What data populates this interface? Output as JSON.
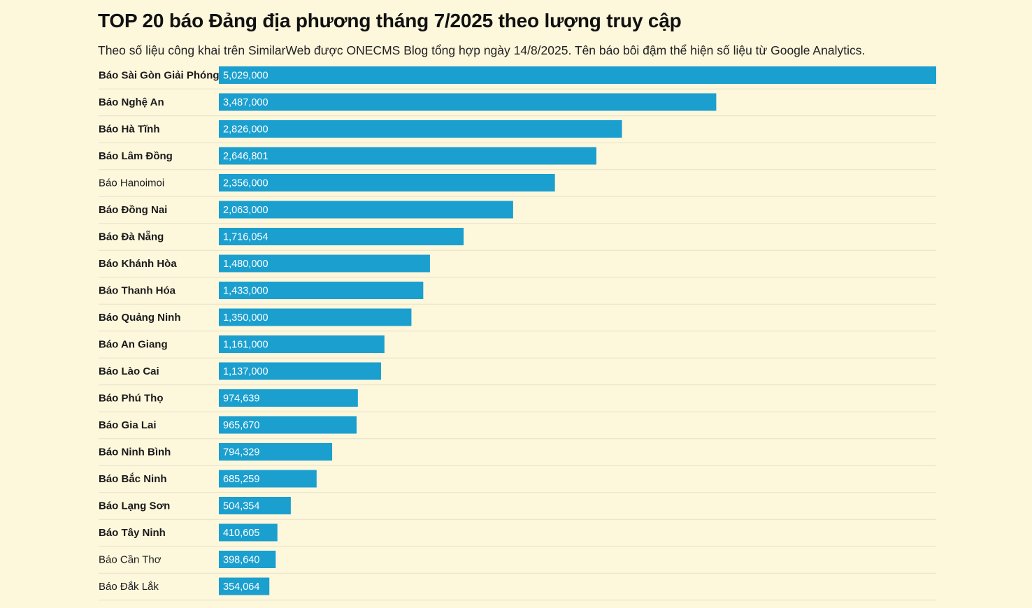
{
  "chart_data": {
    "type": "bar",
    "orientation": "horizontal",
    "title": "TOP 20 báo Đảng địa phương tháng 7/2025 theo lượng truy cập",
    "subtitle": "Theo số liệu công khai trên SimilarWeb được ONECMS Blog tổng hợp ngày 14/8/2025. Tên báo bôi đậm thể hiện số liệu từ Google Analytics.",
    "categories": [
      "Báo Sài Gòn Giải Phóng",
      "Báo Nghệ An",
      "Báo Hà Tĩnh",
      "Báo Lâm Đồng",
      "Báo Hanoimoi",
      "Báo Đồng Nai",
      "Báo Đà Nẵng",
      "Báo Khánh Hòa",
      "Báo Thanh Hóa",
      "Báo Quảng Ninh",
      "Báo An Giang",
      "Báo Lào Cai",
      "Báo Phú Thọ",
      "Báo Gia Lai",
      "Báo Ninh Bình",
      "Báo Bắc Ninh",
      "Báo Lạng Sơn",
      "Báo Tây Ninh",
      "Báo Cần Thơ",
      "Báo Đắk Lắk"
    ],
    "values": [
      5029000,
      3487000,
      2826000,
      2646801,
      2356000,
      2063000,
      1716054,
      1480000,
      1433000,
      1350000,
      1161000,
      1137000,
      974639,
      965670,
      794329,
      685259,
      504354,
      410605,
      398640,
      354064
    ],
    "value_labels": [
      "5,029,000",
      "3,487,000",
      "2,826,000",
      "2,646,801",
      "2,356,000",
      "2,063,000",
      "1,716,054",
      "1,480,000",
      "1,433,000",
      "1,350,000",
      "1,161,000",
      "1,137,000",
      "974,639",
      "965,670",
      "794,329",
      "685,259",
      "504,354",
      "410,605",
      "398,640",
      "354,064"
    ],
    "bold_label": [
      true,
      true,
      true,
      true,
      false,
      true,
      true,
      true,
      true,
      true,
      true,
      true,
      true,
      true,
      true,
      true,
      true,
      true,
      false,
      false
    ],
    "bar_color": "#1a9fcf",
    "grid": false,
    "legend": "none"
  }
}
